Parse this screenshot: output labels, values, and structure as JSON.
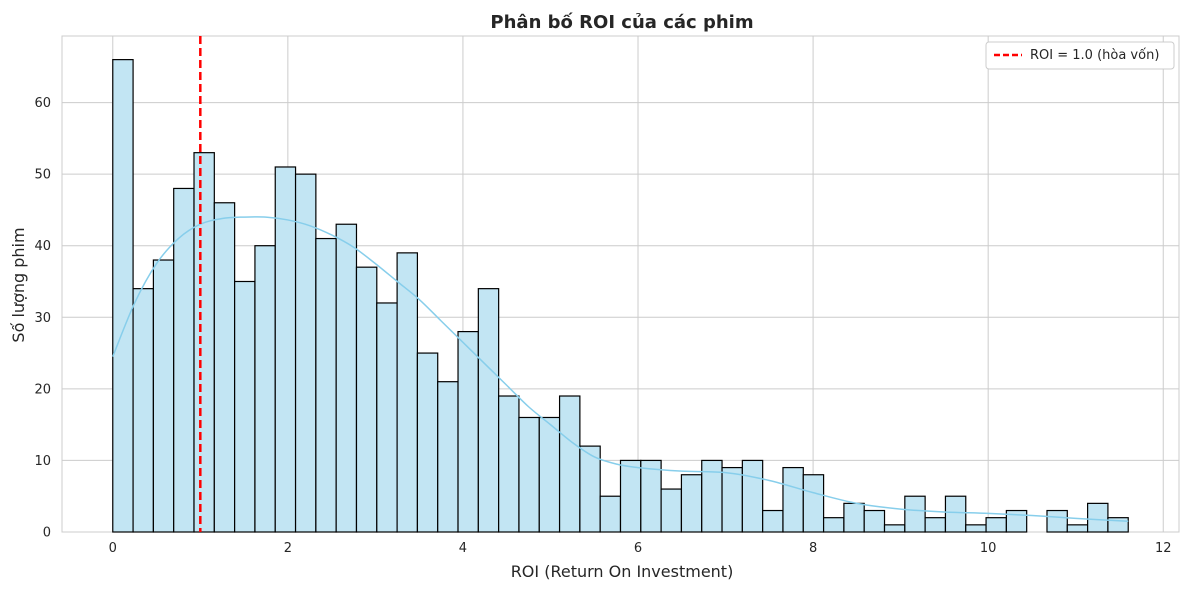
{
  "chart_data": {
    "type": "bar",
    "title": "Phân bố ROI của các phim",
    "xlabel": "ROI (Return On Investment)",
    "ylabel": "Số lượng phim",
    "xlim": [
      -0.58,
      12.18
    ],
    "ylim": [
      0,
      69.3
    ],
    "xticks": [
      0,
      2,
      4,
      6,
      8,
      10,
      12
    ],
    "yticks": [
      0,
      10,
      20,
      30,
      40,
      50,
      60
    ],
    "grid": true,
    "legend_position": "top-right",
    "bin_edges": [
      0,
      0.232,
      0.464,
      0.696,
      0.928,
      1.16,
      1.392,
      1.624,
      1.856,
      2.088,
      2.32,
      2.552,
      2.784,
      3.016,
      3.248,
      3.48,
      3.712,
      3.944,
      4.176,
      4.408,
      4.64,
      4.872,
      5.104,
      5.336,
      5.568,
      5.8,
      6.032,
      6.264,
      6.496,
      6.728,
      6.96,
      7.192,
      7.424,
      7.656,
      7.888,
      8.12,
      8.352,
      8.584,
      8.816,
      9.048,
      9.28,
      9.512,
      9.744,
      9.976,
      10.208,
      10.44,
      10.672,
      10.904,
      11.136,
      11.368,
      11.6
    ],
    "values": [
      66,
      34,
      38,
      48,
      53,
      46,
      35,
      40,
      51,
      50,
      41,
      43,
      37,
      32,
      39,
      25,
      21,
      28,
      34,
      19,
      16,
      16,
      19,
      12,
      5,
      10,
      10,
      6,
      8,
      10,
      9,
      10,
      3,
      9,
      8,
      2,
      4,
      3,
      1,
      5,
      2,
      5,
      1,
      2,
      3,
      0,
      3,
      1,
      4,
      2
    ],
    "bar_fill": "#c2e5f3",
    "bar_edge": "#000000",
    "kde": {
      "name": "",
      "color": "#87ceeb",
      "x": [
        0,
        0.25,
        0.5,
        0.75,
        1.0,
        1.25,
        1.5,
        1.75,
        2.0,
        2.25,
        2.5,
        2.75,
        3.0,
        3.25,
        3.5,
        3.75,
        4.0,
        4.25,
        4.5,
        4.75,
        5.0,
        5.25,
        5.5,
        5.75,
        6.0,
        6.5,
        7.0,
        7.5,
        8.0,
        8.5,
        9.0,
        9.5,
        10.0,
        10.5,
        11.0,
        11.6
      ],
      "y": [
        24.5,
        32,
        37.5,
        41,
        43,
        43.8,
        44,
        44,
        43.6,
        42.8,
        41.5,
        39.8,
        37.5,
        35,
        32.5,
        29.5,
        26.5,
        23.5,
        20.5,
        17.5,
        15,
        12.5,
        10.5,
        9.5,
        9,
        8.5,
        8.3,
        7.2,
        5.5,
        4,
        3.2,
        2.8,
        2.6,
        2.3,
        1.9,
        1.5
      ]
    },
    "reference_line": {
      "x": 1.0,
      "label": "ROI = 1.0 (hòa vốn)",
      "color": "#ff0000"
    }
  }
}
